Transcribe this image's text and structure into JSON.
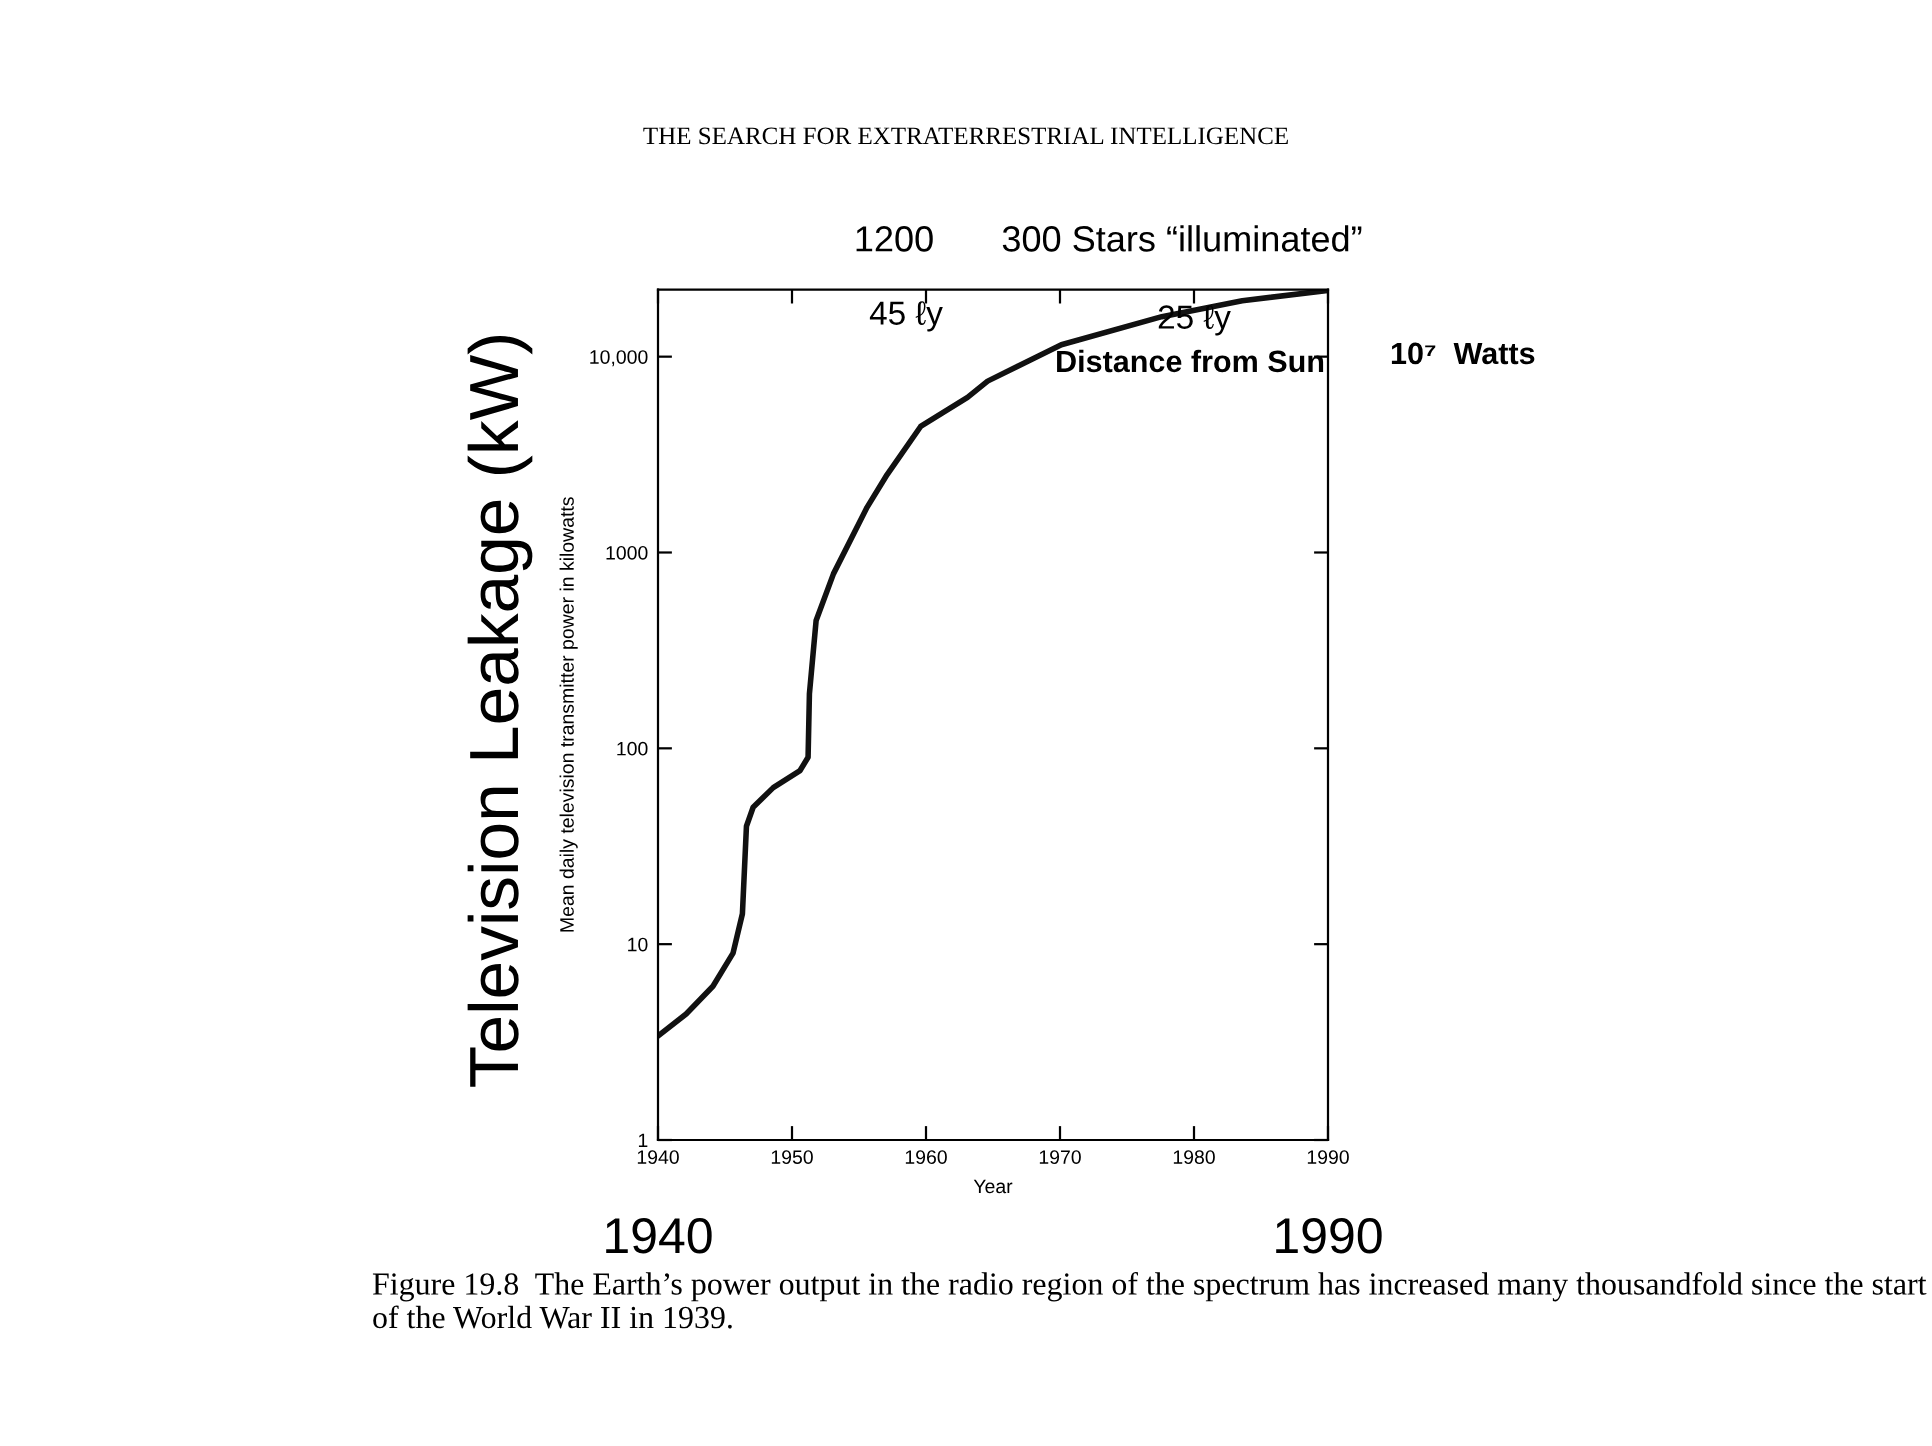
{
  "chart_data": {
    "type": "line",
    "title": "THE SEARCH FOR EXTRATERRESTRIAL INTELLIGENCE",
    "xlabel": "Year",
    "ylabel": "Mean daily television transmitter power in kilowatts",
    "x": [
      1940,
      1942.1,
      1944.1,
      1945.6,
      1946.3,
      1946.6,
      1947.1,
      1948.6,
      1950.6,
      1951.2,
      1951.3,
      1951.8,
      1953.1,
      1955.6,
      1957.1,
      1959.6,
      1963.1,
      1964.6,
      1970.1,
      1977.6,
      1983.6,
      1990
    ],
    "series": [
      {
        "color": "#111111",
        "values": [
          3.4,
          4.4,
          6.1,
          9.0,
          14.3,
          40,
          50,
          63,
          77,
          90,
          190,
          450,
          780,
          1700,
          2500,
          4400,
          6200,
          7500,
          11500,
          16000,
          19300,
          21800
        ]
      }
    ],
    "log": "y",
    "xlim": [
      1940,
      1990
    ],
    "xticks": [
      1940,
      1950,
      1960,
      1970,
      1980,
      1990
    ],
    "ylim": [
      1,
      22000
    ],
    "yticks": [
      1,
      10,
      100,
      {
        "value": 1000,
        "label": "1000"
      },
      {
        "value": 10000,
        "label": "10,000"
      }
    ],
    "grid": false,
    "marker": "none",
    "line_style": "solid",
    "annotations": [
      "Television Leakage (kW)",
      "Distance from Sun",
      "1200",
      "300 Stars “illuminated”",
      "45 ℓy",
      "25 ℓy",
      "10⁷  Watts",
      "1940",
      "1990",
      "Figure 19.8  The Earth’s power output in the radio region of the spectrum has increased many thousandfold since the start of the World War II in 1939."
    ]
  }
}
